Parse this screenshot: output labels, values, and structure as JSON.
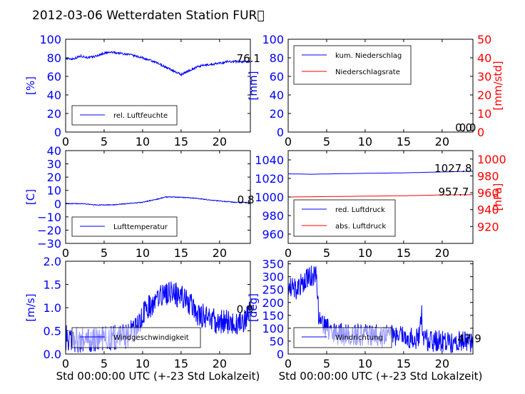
{
  "title": "2012-03-06 Wetterdaten Station FUR\u0000",
  "colors": {
    "primary": "#0000ff",
    "secondary": "#ff0000",
    "axis": "#000000"
  },
  "chart_data": [
    {
      "type": "line",
      "xlim": [
        0,
        24
      ],
      "ylim": [
        0,
        100
      ],
      "xticks": [
        "0",
        "5",
        "10",
        "15",
        "20"
      ],
      "yticks": [
        "0",
        "20",
        "40",
        "60",
        "80",
        "100"
      ],
      "ylabel": "[%]",
      "series": [
        {
          "name": "rel. Luftfeuchte",
          "color": "#0000ff",
          "noise": 1.2,
          "points": [
            [
              0,
              79
            ],
            [
              1,
              79
            ],
            [
              2,
              82
            ],
            [
              3,
              80
            ],
            [
              4,
              82
            ],
            [
              5,
              85
            ],
            [
              6,
              86
            ],
            [
              7,
              85
            ],
            [
              8,
              84
            ],
            [
              9,
              82
            ],
            [
              10,
              80
            ],
            [
              11,
              77
            ],
            [
              12,
              74
            ],
            [
              13,
              70
            ],
            [
              14,
              66
            ],
            [
              15,
              62
            ],
            [
              16,
              66
            ],
            [
              17,
              70
            ],
            [
              18,
              72
            ],
            [
              19,
              73
            ],
            [
              20,
              74
            ],
            [
              21,
              76
            ],
            [
              22,
              76
            ],
            [
              23,
              76
            ],
            [
              24,
              76.1
            ]
          ]
        }
      ],
      "annotations": [
        {
          "text": "76.1",
          "x": 22.2,
          "y": 76.1
        }
      ]
    },
    {
      "type": "line",
      "xlim": [
        0,
        24
      ],
      "ylim": [
        0,
        100
      ],
      "y2lim": [
        0,
        50
      ],
      "xticks": [
        "0",
        "5",
        "10",
        "15",
        "20"
      ],
      "yticks": [
        "0",
        "20",
        "40",
        "60",
        "80",
        "100"
      ],
      "y2ticks": [
        "0",
        "10",
        "20",
        "30",
        "40",
        "50"
      ],
      "ylabel": "[mm]",
      "y2label": "[mm/std]",
      "series": [
        {
          "name": "kum. Niederschlag",
          "color": "#0000ff",
          "noise": 0,
          "axis": "left",
          "points": [
            [
              0,
              0
            ],
            [
              24,
              0
            ]
          ]
        },
        {
          "name": "Niederschlagsrate",
          "color": "#ff0000",
          "noise": 0,
          "axis": "right",
          "points": [
            [
              0,
              0
            ],
            [
              24,
              0
            ]
          ]
        }
      ],
      "annotations": [
        {
          "text": "0.0",
          "x": 21.7,
          "y": 0
        },
        {
          "text": "0.0",
          "x": 22.2,
          "y": 0
        }
      ]
    },
    {
      "type": "line",
      "xlim": [
        0,
        24
      ],
      "ylim": [
        -30,
        40
      ],
      "xticks": [
        "0",
        "5",
        "10",
        "15",
        "20"
      ],
      "yticks": [
        "−30",
        "−20",
        "−10",
        "0",
        "10",
        "20",
        "30",
        "40"
      ],
      "ylabel": "[C]",
      "series": [
        {
          "name": "Lufttemperatur",
          "color": "#0000ff",
          "noise": 0.3,
          "points": [
            [
              0,
              0
            ],
            [
              2,
              0
            ],
            [
              4,
              -1
            ],
            [
              6,
              -1
            ],
            [
              8,
              0
            ],
            [
              10,
              1
            ],
            [
              12,
              3.5
            ],
            [
              13,
              5
            ],
            [
              14,
              5
            ],
            [
              16,
              4.5
            ],
            [
              17,
              4
            ],
            [
              19,
              2.5
            ],
            [
              21,
              1.5
            ],
            [
              22,
              1
            ],
            [
              24,
              0.8
            ]
          ]
        }
      ],
      "annotations": [
        {
          "text": "0.8",
          "x": 22.3,
          "y": 0.8
        }
      ]
    },
    {
      "type": "line",
      "xlim": [
        0,
        24
      ],
      "ylim": [
        950,
        1050
      ],
      "y2lim": [
        900,
        1010
      ],
      "xticks": [
        "0",
        "5",
        "10",
        "15",
        "20"
      ],
      "yticks": [
        "960",
        "980",
        "1000",
        "1020",
        "1040"
      ],
      "y2ticks": [
        "920",
        "940",
        "960",
        "980",
        "1000"
      ],
      "ylabel": "",
      "y2label": "[hPa]",
      "series": [
        {
          "name": "red. Luftdruck",
          "color": "#0000ff",
          "noise": 0,
          "axis": "left",
          "points": [
            [
              0,
              1025
            ],
            [
              3,
              1024.5
            ],
            [
              6,
              1025
            ],
            [
              10,
              1025.5
            ],
            [
              15,
              1026
            ],
            [
              20,
              1027
            ],
            [
              24,
              1027.8
            ]
          ]
        },
        {
          "name": "abs. Luftdruck",
          "color": "#ff0000",
          "noise": 0,
          "axis": "right",
          "points": [
            [
              0,
              955
            ],
            [
              5,
              955.5
            ],
            [
              10,
              956
            ],
            [
              15,
              956.5
            ],
            [
              18,
              957
            ],
            [
              20,
              957.5
            ],
            [
              24,
              957.7
            ]
          ]
        }
      ],
      "annotations": [
        {
          "text": "1027.8",
          "x": 19.0,
          "y": 1027.8,
          "axis": "left"
        },
        {
          "text": "957.7",
          "x": 19.5,
          "y": 957.7,
          "axis": "right"
        }
      ]
    },
    {
      "type": "line",
      "xlim": [
        0,
        24
      ],
      "ylim": [
        0,
        2.0
      ],
      "xticks": [
        "0",
        "5",
        "10",
        "15",
        "20"
      ],
      "yticks": [
        "0.0",
        "0.5",
        "1.0",
        "1.5",
        "2.0"
      ],
      "xlabel": "Std 00:00:00 UTC (+-23 Std Lokalzeit)",
      "ylabel": "[m/s]",
      "series": [
        {
          "name": "Windgeschwindigkeit",
          "color": "#0000ff",
          "noise": 0.28,
          "points": [
            [
              0,
              0.35
            ],
            [
              2,
              0.3
            ],
            [
              4,
              0.3
            ],
            [
              6,
              0.35
            ],
            [
              8,
              0.4
            ],
            [
              9,
              0.5
            ],
            [
              10,
              0.85
            ],
            [
              11,
              1.05
            ],
            [
              12,
              1.2
            ],
            [
              13,
              1.3
            ],
            [
              14,
              1.3
            ],
            [
              15,
              1.2
            ],
            [
              16,
              1.1
            ],
            [
              17,
              0.9
            ],
            [
              18,
              0.8
            ],
            [
              19,
              0.75
            ],
            [
              20,
              0.7
            ],
            [
              21,
              0.7
            ],
            [
              22,
              0.65
            ],
            [
              23,
              0.7
            ],
            [
              24,
              0.9
            ]
          ]
        }
      ],
      "annotations": [
        {
          "text": "0.9",
          "x": 22.2,
          "y": 0.9
        }
      ]
    },
    {
      "type": "line",
      "xlim": [
        0,
        24
      ],
      "ylim": [
        0,
        360
      ],
      "xticks": [
        "0",
        "5",
        "10",
        "15",
        "20"
      ],
      "yticks": [
        "0",
        "50",
        "100",
        "150",
        "200",
        "250",
        "300",
        "350"
      ],
      "xlabel": "Std 00:00:00 UTC (+-23 Std Lokalzeit)",
      "ylabel": "[deg]",
      "series": [
        {
          "name": "Windrichtung",
          "color": "#0000ff",
          "noise": 45,
          "points": [
            [
              0,
              270
            ],
            [
              1,
              250
            ],
            [
              2,
              280
            ],
            [
              3,
              300
            ],
            [
              3.7,
              310
            ],
            [
              4,
              120
            ],
            [
              5,
              100
            ],
            [
              6,
              80
            ],
            [
              8,
              75
            ],
            [
              10,
              75
            ],
            [
              12,
              70
            ],
            [
              14,
              68
            ],
            [
              16,
              62
            ],
            [
              17,
              60
            ],
            [
              17.3,
              170
            ],
            [
              17.6,
              55
            ],
            [
              19,
              50
            ],
            [
              21,
              45
            ],
            [
              23,
              48
            ],
            [
              24,
              47.9
            ]
          ]
        }
      ],
      "annotations": [
        {
          "text": "47.9",
          "x": 22.0,
          "y": 47.9
        }
      ]
    }
  ]
}
